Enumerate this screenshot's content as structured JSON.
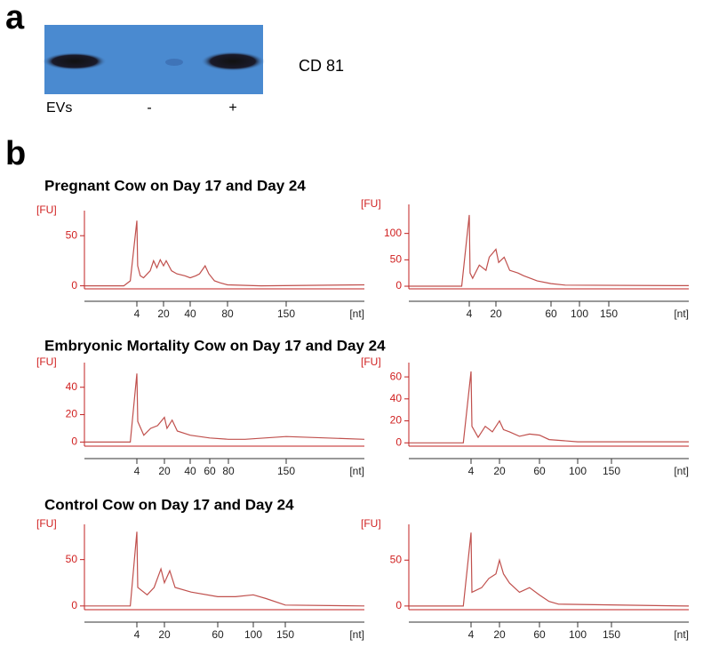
{
  "panel_labels": [
    "a",
    "b"
  ],
  "blot": {
    "marker": "CD 81",
    "lanes": [
      "EVs",
      "-",
      "+"
    ]
  },
  "section_titles": [
    "Pregnant Cow on Day 17 and Day 24",
    "Embryonic Mortality Cow on Day 17 and Day 24",
    "Control Cow on Day 17 and Day 24"
  ],
  "chart_data": [
    {
      "type": "line",
      "y_label": "[FU]",
      "x_label": "[nt]",
      "color": "#c0504d",
      "xlim": [
        0,
        200
      ],
      "ylim": [
        -3,
        75
      ],
      "yticks": [
        0,
        50
      ],
      "xticks": [
        4,
        20,
        40,
        80,
        150
      ],
      "x": [
        0,
        3,
        3.5,
        4,
        4.5,
        6,
        8,
        12,
        14,
        16,
        18,
        20,
        22,
        26,
        30,
        36,
        40,
        46,
        50,
        56,
        60,
        66,
        72,
        80,
        120,
        200
      ],
      "values": [
        0,
        0,
        5,
        65,
        20,
        10,
        8,
        15,
        25,
        18,
        26,
        20,
        25,
        15,
        12,
        10,
        8,
        10,
        12,
        20,
        12,
        5,
        3,
        1,
        0,
        1
      ]
    },
    {
      "type": "line",
      "y_label": "[FU]",
      "x_label": "[nt]",
      "color": "#c0504d",
      "xlim": [
        0,
        200
      ],
      "ylim": [
        -5,
        155
      ],
      "yticks": [
        0,
        50,
        100
      ],
      "xticks": [
        4,
        20,
        60,
        100,
        150
      ],
      "x": [
        0,
        3.5,
        4,
        4.5,
        6,
        10,
        14,
        16,
        20,
        22,
        26,
        30,
        36,
        40,
        50,
        60,
        80,
        200
      ],
      "values": [
        0,
        0,
        135,
        25,
        15,
        40,
        30,
        55,
        70,
        45,
        55,
        30,
        25,
        20,
        10,
        5,
        2,
        1
      ]
    },
    {
      "type": "line",
      "y_label": "[FU]",
      "x_label": "[nt]",
      "color": "#c0504d",
      "xlim": [
        0,
        200
      ],
      "ylim": [
        -3,
        58
      ],
      "yticks": [
        0,
        20,
        40
      ],
      "xticks": [
        4,
        20,
        40,
        60,
        80,
        150
      ],
      "x": [
        0,
        3.5,
        4,
        4.5,
        8,
        12,
        16,
        20,
        22,
        26,
        30,
        40,
        60,
        80,
        100,
        150,
        200
      ],
      "values": [
        0,
        0,
        50,
        15,
        5,
        10,
        12,
        18,
        10,
        16,
        8,
        5,
        3,
        2,
        2,
        4,
        2
      ]
    },
    {
      "type": "line",
      "y_label": "[FU]",
      "x_label": "[nt]",
      "color": "#c0504d",
      "xlim": [
        0,
        200
      ],
      "ylim": [
        -3,
        73
      ],
      "yticks": [
        0,
        20,
        40,
        60
      ],
      "xticks": [
        4,
        20,
        60,
        100,
        150
      ],
      "x": [
        0,
        3.5,
        4,
        4.5,
        8,
        12,
        16,
        20,
        24,
        30,
        40,
        50,
        60,
        70,
        100,
        200
      ],
      "values": [
        0,
        0,
        65,
        15,
        5,
        15,
        10,
        20,
        12,
        10,
        6,
        8,
        7,
        3,
        1,
        1
      ]
    },
    {
      "type": "line",
      "y_label": "[FU]",
      "x_label": "[nt]",
      "color": "#c0504d",
      "xlim": [
        0,
        200
      ],
      "ylim": [
        -4,
        88
      ],
      "yticks": [
        0,
        50
      ],
      "xticks": [
        4,
        20,
        60,
        100,
        150
      ],
      "x": [
        0,
        3.5,
        4,
        4.5,
        10,
        14,
        18,
        20,
        24,
        28,
        40,
        60,
        80,
        100,
        120,
        150,
        200
      ],
      "values": [
        0,
        0,
        80,
        20,
        12,
        20,
        40,
        25,
        38,
        20,
        15,
        10,
        10,
        12,
        8,
        1,
        0
      ]
    },
    {
      "type": "line",
      "y_label": "[FU]",
      "x_label": "[nt]",
      "color": "#c0504d",
      "xlim": [
        0,
        200
      ],
      "ylim": [
        -4,
        89
      ],
      "yticks": [
        0,
        50
      ],
      "xticks": [
        4,
        20,
        60,
        100,
        150
      ],
      "x": [
        0,
        3.5,
        4,
        4.5,
        10,
        14,
        18,
        20,
        24,
        30,
        40,
        50,
        60,
        70,
        80,
        200
      ],
      "values": [
        0,
        0,
        80,
        15,
        20,
        30,
        35,
        50,
        35,
        25,
        15,
        20,
        12,
        5,
        2,
        0
      ]
    }
  ]
}
